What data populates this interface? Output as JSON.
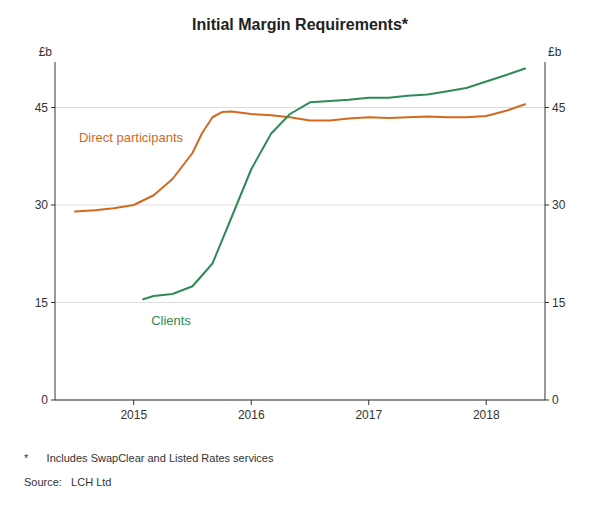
{
  "chart_data": {
    "type": "line",
    "title": "Initial Margin Requirements*",
    "ylabel": "£b",
    "y2label": "£b",
    "annotations": [
      "*      Includes SwapClear and Listed Rates services",
      "Source:   LCH Ltd"
    ],
    "series": [
      {
        "name": "Direct participants",
        "color": "#D2691E",
        "x": [
          2014.5,
          2014.67,
          2014.83,
          2015.0,
          2015.17,
          2015.33,
          2015.5,
          2015.58,
          2015.67,
          2015.75,
          2015.83,
          2016.0,
          2016.17,
          2016.33,
          2016.5,
          2016.67,
          2016.83,
          2017.0,
          2017.17,
          2017.33,
          2017.5,
          2017.67,
          2017.83,
          2018.0,
          2018.17,
          2018.33
        ],
        "values": [
          29.0,
          29.2,
          29.5,
          30.0,
          31.5,
          34.0,
          38.0,
          41.0,
          43.5,
          44.3,
          44.4,
          44.0,
          43.8,
          43.5,
          43.0,
          43.0,
          43.3,
          43.5,
          43.4,
          43.5,
          43.6,
          43.5,
          43.5,
          43.7,
          44.5,
          45.5
        ]
      },
      {
        "name": "Clients",
        "color": "#2E8B57",
        "x": [
          2015.08,
          2015.17,
          2015.33,
          2015.5,
          2015.67,
          2015.83,
          2016.0,
          2016.17,
          2016.33,
          2016.5,
          2016.67,
          2016.83,
          2017.0,
          2017.17,
          2017.33,
          2017.5,
          2017.67,
          2017.83,
          2018.0,
          2018.17,
          2018.33
        ],
        "values": [
          15.5,
          16.0,
          16.3,
          17.5,
          21.0,
          28.0,
          35.5,
          41.0,
          44.0,
          45.8,
          46.0,
          46.2,
          46.5,
          46.5,
          46.8,
          47.0,
          47.5,
          48.0,
          49.0,
          50.0,
          51.0
        ]
      }
    ],
    "xlim": [
      2014.33,
      2018.5
    ],
    "xticks": [
      2015,
      2016,
      2017,
      2018
    ],
    "ylim": [
      0,
      52
    ],
    "yticks": [
      0,
      15,
      30,
      45
    ],
    "y2lim": [
      0,
      52
    ],
    "y2ticks": [
      0,
      15,
      30,
      45
    ],
    "grid": true
  }
}
